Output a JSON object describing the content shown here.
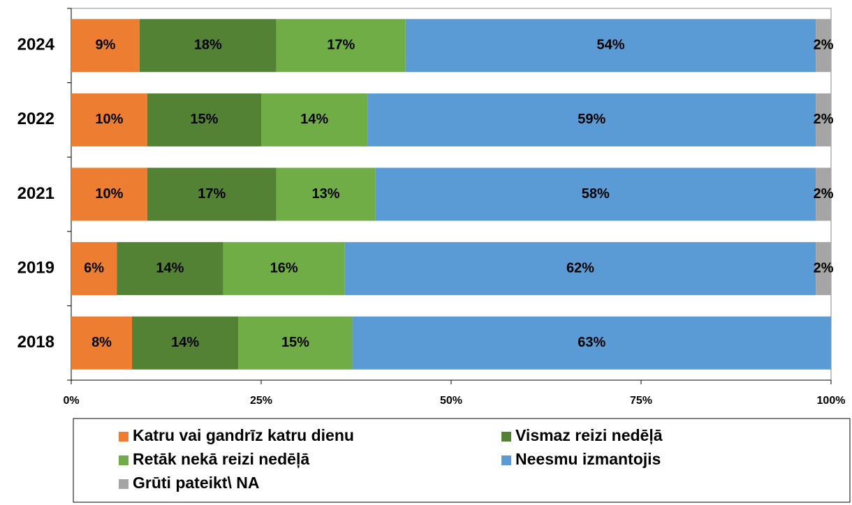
{
  "chart_data": {
    "type": "stacked_barh",
    "categories": [
      "2024",
      "2022",
      "2021",
      "2019",
      "2018"
    ],
    "series": [
      {
        "name": "Katru vai gandrīz katru dienu",
        "color": "#ed7d31",
        "values": [
          9,
          10,
          10,
          6,
          8
        ],
        "value_labels": [
          "9%",
          "10%",
          "10%",
          "6%",
          "8%"
        ]
      },
      {
        "name": "Vismaz reizi nedēļā",
        "color": "#548235",
        "values": [
          18,
          15,
          17,
          14,
          14
        ],
        "value_labels": [
          "18%",
          "15%",
          "17%",
          "14%",
          "14%"
        ]
      },
      {
        "name": "Retāk nekā reizi nedēļā",
        "color": "#70ad47",
        "values": [
          17,
          14,
          13,
          16,
          15
        ],
        "value_labels": [
          "17%",
          "14%",
          "13%",
          "16%",
          "15%"
        ]
      },
      {
        "name": "Neesmu izmantojis",
        "color": "#5b9bd5",
        "values": [
          54,
          59,
          58,
          62,
          63
        ],
        "value_labels": [
          "54%",
          "59%",
          "58%",
          "62%",
          "63%"
        ]
      },
      {
        "name": "Grūti pateikt\\ NA",
        "color": "#a5a5a5",
        "values": [
          2,
          2,
          2,
          2,
          null
        ],
        "value_labels": [
          "2%",
          "2%",
          "2%",
          "2%",
          null
        ]
      }
    ],
    "xlim": [
      0,
      100
    ],
    "xticks": [
      {
        "value": 0,
        "label": "0%"
      },
      {
        "value": 25,
        "label": "25%"
      },
      {
        "value": 50,
        "label": "50%"
      },
      {
        "value": 75,
        "label": "75%"
      },
      {
        "value": 100,
        "label": "100%"
      }
    ],
    "legend": "bottom"
  }
}
